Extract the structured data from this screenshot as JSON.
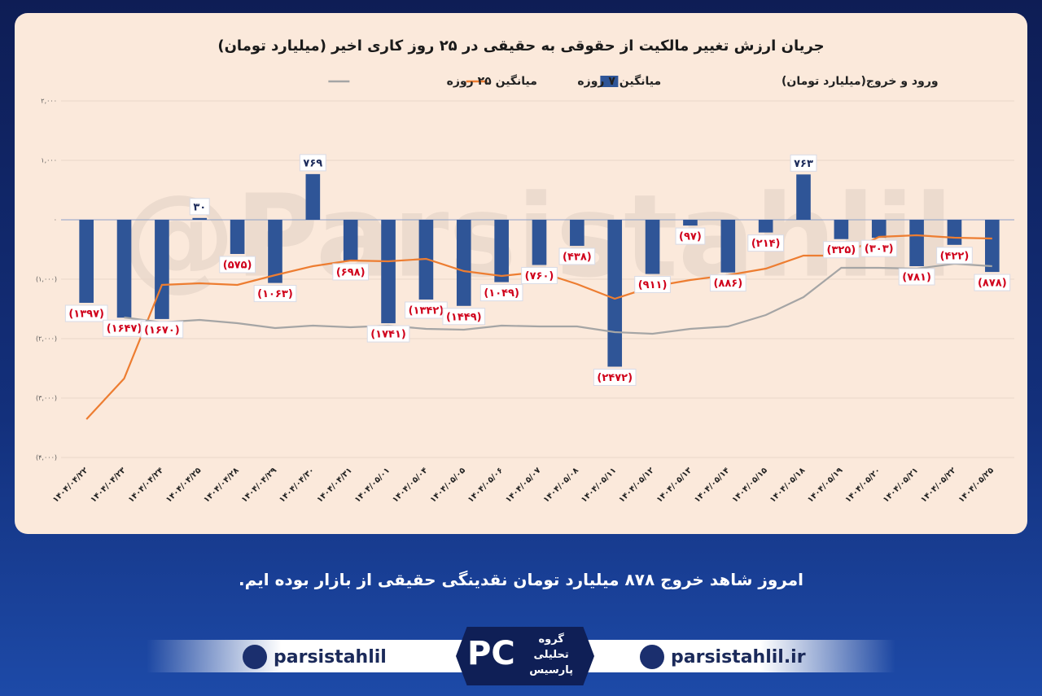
{
  "chart_data": {
    "type": "bar",
    "title": "جریان ارزش تغییر مالکیت از حقوقی به حقیقی در ۲۵ روز کاری اخیر (میلیارد تومان)",
    "watermark": "@Parsistahlil",
    "categories": [
      "۱۴۰۴/۰۴/۲۲",
      "۱۴۰۴/۰۴/۲۳",
      "۱۴۰۴/۰۴/۲۴",
      "۱۴۰۴/۰۴/۲۵",
      "۱۴۰۴/۰۴/۲۸",
      "۱۴۰۴/۰۴/۲۹",
      "۱۴۰۴/۰۴/۳۰",
      "۱۴۰۴/۰۴/۳۱",
      "۱۴۰۴/۰۵/۰۱",
      "۱۴۰۴/۰۵/۰۴",
      "۱۴۰۴/۰۵/۰۵",
      "۱۴۰۴/۰۵/۰۶",
      "۱۴۰۴/۰۵/۰۷",
      "۱۴۰۴/۰۵/۰۸",
      "۱۴۰۴/۰۵/۱۱",
      "۱۴۰۴/۰۵/۱۲",
      "۱۴۰۴/۰۵/۱۳",
      "۱۴۰۴/۰۵/۱۴",
      "۱۴۰۴/۰۵/۱۵",
      "۱۴۰۴/۰۵/۱۸",
      "۱۴۰۴/۰۵/۱۹",
      "۱۴۰۴/۰۵/۲۰",
      "۱۴۰۴/۰۵/۲۱",
      "۱۴۰۴/۰۵/۲۲",
      "۱۴۰۴/۰۵/۲۵"
    ],
    "series": [
      {
        "name": "ورود و خروج(میلیارد تومان)",
        "type": "bar",
        "color": "#2f5597",
        "values": [
          -1397,
          -1647,
          -1670,
          30,
          -575,
          -1063,
          769,
          -698,
          -1741,
          -1342,
          -1449,
          -1049,
          -760,
          -438,
          -2472,
          -911,
          -97,
          -886,
          -214,
          763,
          -325,
          -303,
          -781,
          -422,
          -878
        ],
        "value_labels": [
          "(۱۳۹۷)",
          "(۱۶۴۷)",
          "(۱۶۷۰)",
          "۳۰",
          "(۵۷۵)",
          "(۱۰۶۳)",
          "۷۶۹",
          "(۶۹۸)",
          "(۱۷۴۱)",
          "(۱۳۴۲)",
          "(۱۴۴۹)",
          "(۱۰۴۹)",
          "(۷۶۰)",
          "(۴۳۸)",
          "(۲۴۷۲)",
          "(۹۱۱)",
          "(۹۷)",
          "(۸۸۶)",
          "(۲۱۴)",
          "۷۶۳",
          "(۳۲۵)",
          "(۳۰۳)",
          "(۷۸۱)",
          "(۴۲۲)",
          "(۸۷۸)"
        ]
      },
      {
        "name": "میانگین ۷ روزه",
        "type": "line",
        "color": "#ed7d31",
        "values": [
          -3356,
          -2671,
          -1096,
          -1068,
          -1096,
          -932,
          -781,
          -685,
          -699,
          -658,
          -863,
          -945,
          -877,
          -1082,
          -1329,
          -1123,
          -1014,
          -932,
          -822,
          -603,
          -603,
          -288,
          -260,
          -301,
          -315
        ]
      },
      {
        "name": "میانگین ۲۵ روزه",
        "type": "line",
        "color": "#a5a5a5",
        "values": [
          null,
          -1644,
          -1726,
          -1685,
          -1740,
          -1822,
          -1781,
          -1808,
          -1781,
          -1836,
          -1849,
          -1781,
          -1795,
          -1795,
          -1890,
          -1918,
          -1836,
          -1795,
          -1603,
          -1301,
          -808,
          -808,
          -822,
          -740,
          -781
        ]
      }
    ],
    "ylim": [
      -4000,
      2000
    ],
    "yticks": [
      {
        "value": -4000,
        "label": "(۴,۰۰۰)"
      },
      {
        "value": -3000,
        "label": "(۳,۰۰۰)"
      },
      {
        "value": -2000,
        "label": "(۲,۰۰۰)"
      },
      {
        "value": -1000,
        "label": "(۱,۰۰۰)"
      },
      {
        "value": 0,
        "label": "۰"
      },
      {
        "value": 1000,
        "label": "۱,۰۰۰"
      },
      {
        "value": 2000,
        "label": "۲,۰۰۰"
      }
    ],
    "grid": true
  },
  "footer": {
    "message": "امروز شاهد خروج ۸۷۸ میلیارد تومان نقدینگی حقیقی از بازار بوده ایم.",
    "telegram": "parsistahlil",
    "website": "parsistahlil.ir",
    "logo": [
      "گروه",
      "تحلیلی",
      "پارسیس"
    ]
  }
}
